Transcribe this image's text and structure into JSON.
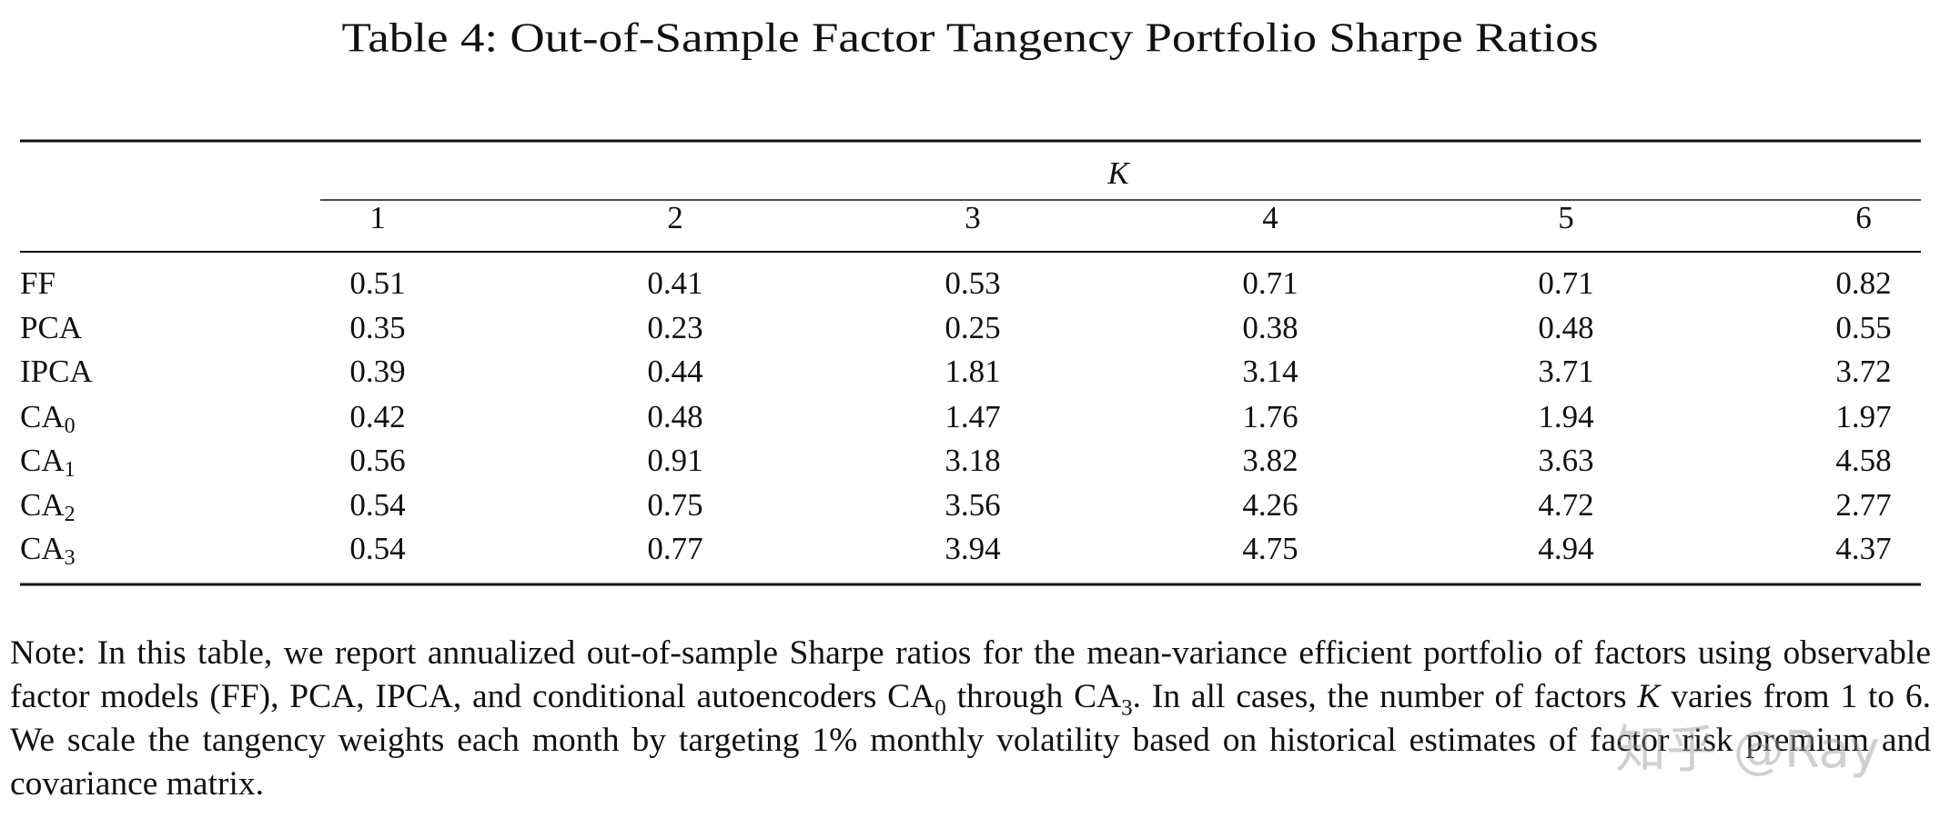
{
  "title": "Table 4: Out-of-Sample Factor Tangency Portfolio Sharpe Ratios",
  "table": {
    "group_header": "K",
    "columns": [
      "1",
      "2",
      "3",
      "4",
      "5",
      "6"
    ],
    "rows": [
      {
        "label": "FF",
        "values": [
          "0.51",
          "0.41",
          "0.53",
          "0.71",
          "0.71",
          "0.82"
        ]
      },
      {
        "label": "PCA",
        "values": [
          "0.35",
          "0.23",
          "0.25",
          "0.38",
          "0.48",
          "0.55"
        ]
      },
      {
        "label": "IPCA",
        "values": [
          "0.39",
          "0.44",
          "1.81",
          "3.14",
          "3.71",
          "3.72"
        ]
      },
      {
        "label": "CA",
        "sub": "0",
        "values": [
          "0.42",
          "0.48",
          "1.47",
          "1.76",
          "1.94",
          "1.97"
        ]
      },
      {
        "label": "CA",
        "sub": "1",
        "values": [
          "0.56",
          "0.91",
          "3.18",
          "3.82",
          "3.63",
          "4.58"
        ]
      },
      {
        "label": "CA",
        "sub": "2",
        "values": [
          "0.54",
          "0.75",
          "3.56",
          "4.26",
          "4.72",
          "2.77"
        ]
      },
      {
        "label": "CA",
        "sub": "3",
        "values": [
          "0.54",
          "0.77",
          "3.94",
          "4.75",
          "4.94",
          "4.37"
        ]
      }
    ]
  },
  "note": [
    "Note: In this table, we report annualized out-of-sample Sharpe ratios for the mean-variance efficient portfolio of factors using observable factor models (FF), PCA, IPCA, and conditional autoencoders CA",
    "0",
    " through CA",
    "3",
    ". In all cases, the number of factors ",
    "K",
    " varies from 1 to 6. We scale the tangency weights each month by targeting 1% monthly volatility based on historical estimates of factor risk premium and covariance matrix."
  ],
  "watermark": "知乎 @Ray"
}
